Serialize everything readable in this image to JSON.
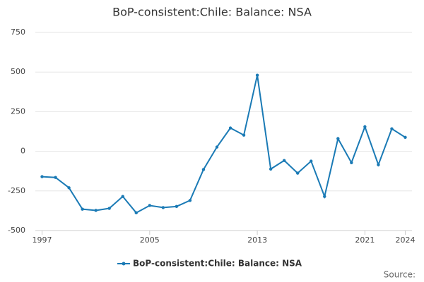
{
  "chart_data": {
    "type": "line",
    "title": "BoP-consistent:Chile: Balance: NSA",
    "x": [
      1997,
      1998,
      1999,
      2000,
      2001,
      2002,
      2003,
      2004,
      2005,
      2006,
      2007,
      2008,
      2009,
      2010,
      2011,
      2012,
      2013,
      2014,
      2015,
      2016,
      2017,
      2018,
      2019,
      2020,
      2021,
      2022,
      2023,
      2024
    ],
    "series": [
      {
        "name": "BoP-consistent:Chile: Balance: NSA",
        "color": "#1a7ab5",
        "values": [
          -160,
          -165,
          -230,
          -365,
          -373,
          -360,
          -285,
          -388,
          -342,
          -355,
          -348,
          -310,
          -115,
          27,
          147,
          102,
          480,
          -112,
          -58,
          -138,
          -62,
          -285,
          80,
          -72,
          155,
          -85,
          142,
          88
        ]
      }
    ],
    "xlim": [
      1996.5,
      2024.5
    ],
    "xticks": [
      1997,
      2005,
      2013,
      2021,
      2024
    ],
    "ylim": [
      -500,
      750
    ],
    "yticks": [
      -500,
      -250,
      0,
      250,
      500,
      750
    ],
    "grid": true,
    "legend": "bottom",
    "source": "Source:"
  }
}
